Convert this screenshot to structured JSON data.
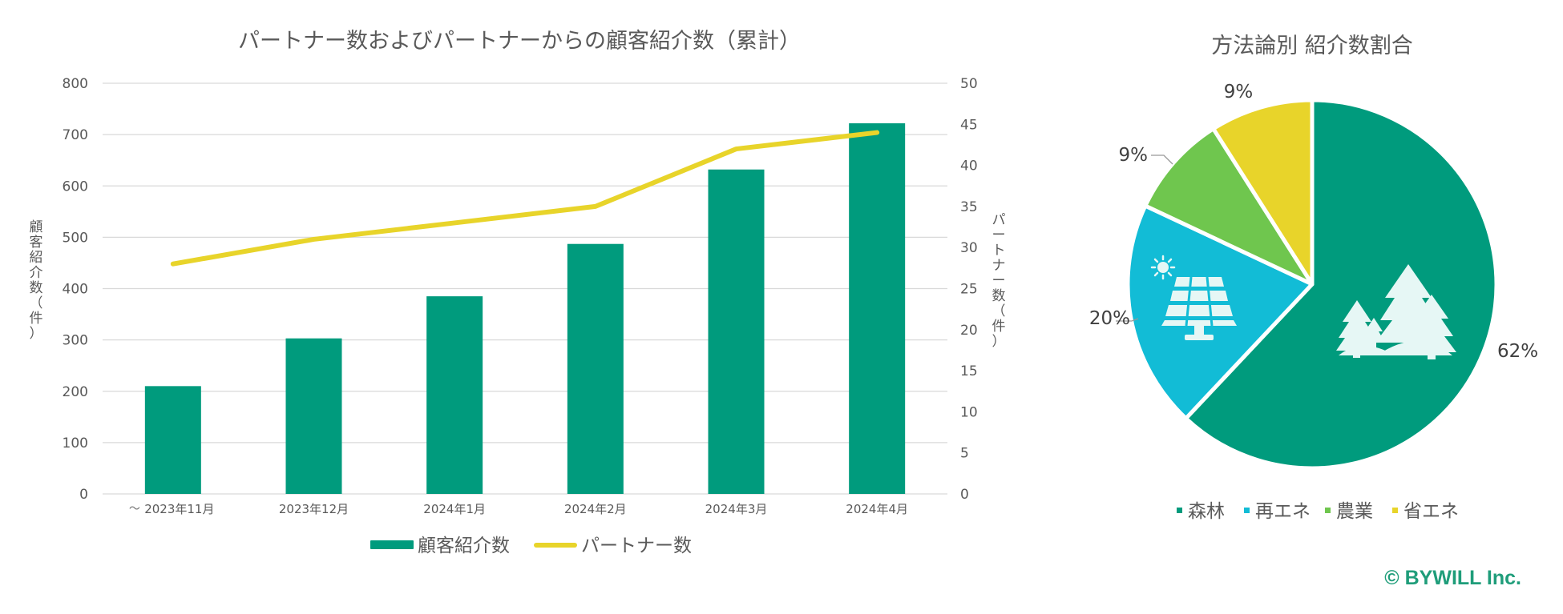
{
  "colors": {
    "bar": "#009B7D",
    "line": "#E8D42A",
    "grid": "#D9D9D9",
    "text": "#595959",
    "forest": "#009B7D",
    "renewable": "#12BCD6",
    "agriculture": "#6FC64E",
    "energy_saving": "#E8D42A",
    "brand": "#1F9D7A"
  },
  "chart_data": [
    {
      "type": "bar",
      "title": "パートナー数およびパートナーからの顧客紹介数（累計）",
      "categories": [
        "2023年11月",
        "2023年12月",
        "2024年1月",
        "2024年2月",
        "2024年3月",
        "2024年4月"
      ],
      "axis_break_marker": "〜",
      "series": [
        {
          "name": "顧客紹介数",
          "type": "bar",
          "axis": "left",
          "values": [
            210,
            303,
            385,
            487,
            632,
            722
          ]
        },
        {
          "name": "パートナー数",
          "type": "line",
          "axis": "right",
          "values": [
            28,
            31,
            33,
            35,
            42,
            44
          ]
        }
      ],
      "ylabel": "顧客紹介数（件）",
      "ylim": [
        0,
        800
      ],
      "yticks": [
        0,
        100,
        200,
        300,
        400,
        500,
        600,
        700,
        800
      ],
      "y2label": "パートナー数（件）",
      "y2lim": [
        0,
        50
      ],
      "y2ticks": [
        0,
        5,
        10,
        15,
        20,
        25,
        30,
        35,
        40,
        45,
        50
      ],
      "grid": true,
      "legend_position": "bottom"
    },
    {
      "type": "pie",
      "title": "方法論別 紹介数割合",
      "categories": [
        "森林",
        "再エネ",
        "農業",
        "省エネ"
      ],
      "values": [
        62,
        20,
        9,
        9
      ],
      "labels": [
        "62%",
        "20%",
        "9%",
        "9%"
      ],
      "icons": [
        "forest-icon",
        "solar-panel-icon"
      ],
      "legend_position": "bottom"
    }
  ],
  "footer": {
    "copyright": "© BYWILL Inc."
  }
}
